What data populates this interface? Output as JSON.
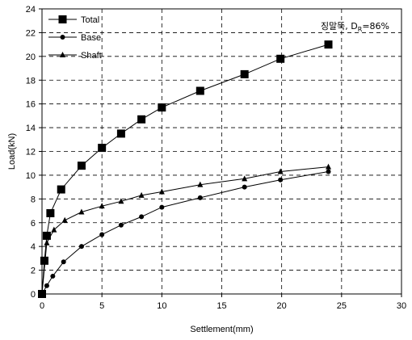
{
  "chart_data": {
    "type": "line",
    "xlabel": "Settlement(mm)",
    "ylabel": "Load(kN)",
    "xlim": [
      0,
      30
    ],
    "ylim": [
      0,
      24
    ],
    "xticks": [
      0,
      5,
      10,
      15,
      20,
      25,
      30
    ],
    "yticks": [
      0,
      2,
      4,
      6,
      8,
      10,
      12,
      14,
      16,
      18,
      20,
      22,
      24
    ],
    "grid": true,
    "legend_position": "top-left",
    "annotation": {
      "main": "징말뚝, D",
      "sub": "R",
      "tail": "=86%"
    },
    "series": [
      {
        "name": "Total",
        "marker": "square",
        "x": [
          0,
          0.2,
          0.4,
          0.7,
          1.6,
          3.3,
          5.0,
          6.6,
          8.3,
          10.0,
          13.2,
          16.9,
          19.9,
          23.9
        ],
        "y": [
          0,
          2.8,
          4.9,
          6.8,
          8.8,
          10.8,
          12.3,
          13.5,
          14.7,
          15.7,
          17.1,
          18.5,
          19.8,
          21.0
        ]
      },
      {
        "name": "Base",
        "marker": "circle",
        "x": [
          0,
          0.4,
          0.9,
          1.8,
          3.3,
          5.0,
          6.6,
          8.3,
          10.0,
          13.2,
          16.9,
          19.9,
          23.9
        ],
        "y": [
          0,
          0.7,
          1.5,
          2.7,
          4.0,
          5.0,
          5.8,
          6.5,
          7.3,
          8.1,
          9.0,
          9.6,
          10.3
        ]
      },
      {
        "name": "Shaft",
        "marker": "triangle",
        "x": [
          0,
          0.4,
          1.0,
          1.9,
          3.3,
          5.0,
          6.6,
          8.3,
          10.0,
          13.2,
          16.9,
          19.9,
          23.9
        ],
        "y": [
          0,
          4.3,
          5.4,
          6.2,
          6.9,
          7.4,
          7.8,
          8.3,
          8.6,
          9.2,
          9.7,
          10.3,
          10.7
        ]
      }
    ]
  }
}
